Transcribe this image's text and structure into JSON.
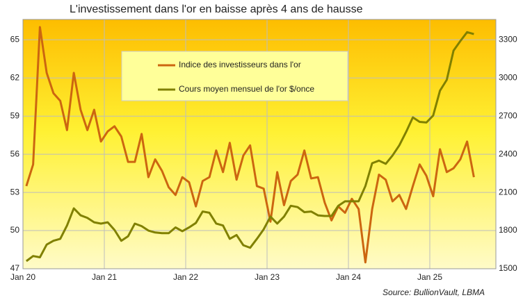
{
  "chart_data": {
    "type": "line",
    "title": "L'investissement dans l'or en baisse après 4 ans de hausse",
    "source": "Source: BullionVault, LBMA",
    "categories": [
      "Jan 20",
      null,
      null,
      null,
      null,
      null,
      null,
      null,
      null,
      null,
      null,
      null,
      "Jan 21",
      null,
      null,
      null,
      null,
      null,
      null,
      null,
      null,
      null,
      null,
      null,
      "Jan 22",
      null,
      null,
      null,
      null,
      null,
      null,
      null,
      null,
      null,
      null,
      null,
      "Jan 23",
      null,
      null,
      null,
      null,
      null,
      null,
      null,
      null,
      null,
      null,
      null,
      "Jan 24",
      null,
      null,
      null,
      null,
      null,
      null,
      null,
      null,
      null,
      null,
      null,
      "Jan 25",
      null,
      null,
      null,
      null,
      null,
      null
    ],
    "series": [
      {
        "name": "Indice des investisseurs dans l'or",
        "color": "#cc6610",
        "axis": "y",
        "values": [
          53.5,
          55.2,
          66.0,
          62.4,
          60.8,
          60.2,
          57.9,
          62.4,
          59.5,
          57.9,
          59.5,
          57.0,
          57.8,
          58.2,
          57.4,
          55.4,
          55.4,
          57.6,
          54.2,
          55.6,
          54.7,
          53.4,
          52.8,
          54.2,
          53.8,
          51.9,
          53.9,
          54.2,
          56.3,
          54.6,
          56.9,
          54.0,
          55.9,
          56.7,
          53.5,
          53.3,
          50.7,
          54.6,
          52.0,
          53.9,
          54.4,
          56.3,
          54.1,
          54.2,
          52.2,
          50.8,
          51.9,
          51.4,
          52.5,
          51.7,
          47.5,
          51.7,
          54.4,
          54.0,
          52.3,
          52.8,
          51.7,
          53.5,
          55.2,
          54.3,
          52.7,
          56.4,
          54.6,
          54.9,
          55.6,
          57.0,
          54.2
        ]
      },
      {
        "name": "Cours moyen mensuel de l'or $/once",
        "color": "#808000",
        "axis": "y2",
        "values": [
          1560,
          1600,
          1590,
          1690,
          1720,
          1735,
          1840,
          1975,
          1920,
          1900,
          1865,
          1855,
          1865,
          1805,
          1720,
          1755,
          1855,
          1835,
          1800,
          1785,
          1780,
          1780,
          1825,
          1795,
          1825,
          1860,
          1950,
          1940,
          1855,
          1840,
          1735,
          1765,
          1685,
          1665,
          1735,
          1810,
          1910,
          1855,
          1910,
          1995,
          1985,
          1945,
          1950,
          1920,
          1915,
          1915,
          1995,
          2030,
          2030,
          2030,
          2150,
          2330,
          2350,
          2325,
          2390,
          2470,
          2575,
          2690,
          2655,
          2650,
          2705,
          2900,
          2985,
          3215,
          3290,
          3360,
          3345
        ]
      }
    ],
    "ylim": [
      47,
      66.6
    ],
    "yticks": [
      47,
      50,
      53,
      56,
      59,
      62,
      65
    ],
    "y2lim": [
      1500,
      3460
    ],
    "y2ticks": [
      1500,
      1800,
      2100,
      2400,
      2700,
      3000,
      3300
    ],
    "grid": true
  }
}
